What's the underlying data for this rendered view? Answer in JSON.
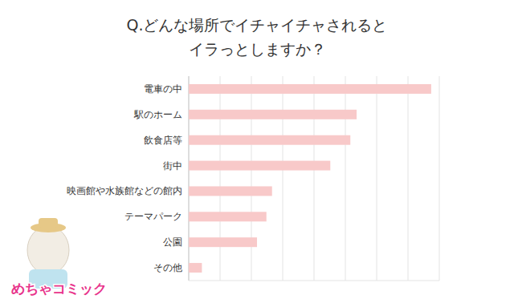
{
  "chart_data": {
    "type": "bar",
    "orientation": "horizontal",
    "title": "Q.どんな場所でイチャイチャされると\nイラっとしますか？",
    "categories": [
      "電車の中",
      "駅のホーム",
      "飲食店等",
      "街中",
      "映画館や水族館などの館内",
      "テーマパーク",
      "公園",
      "その他"
    ],
    "values": [
      38.7,
      26.8,
      25.8,
      22.6,
      13.3,
      12.4,
      10.9,
      2.1
    ],
    "color": "#f8c9c9",
    "xlim": [
      0,
      40
    ],
    "xticks": [
      0,
      5,
      10,
      15,
      20,
      25,
      30,
      35,
      40
    ],
    "grid": true,
    "tick_labels": "y"
  },
  "watermark": "めちゃコミック"
}
